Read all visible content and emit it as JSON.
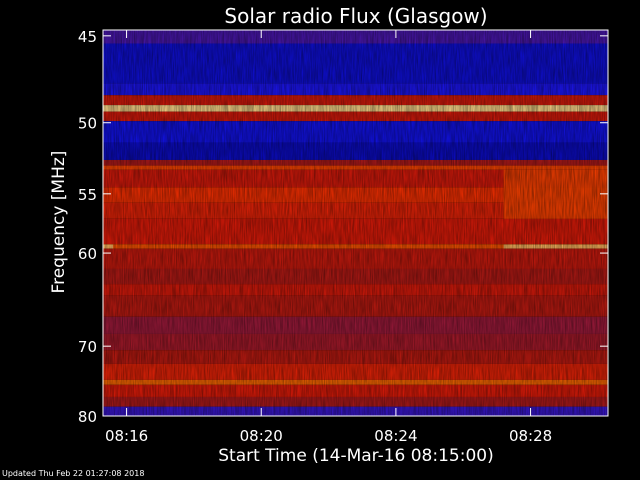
{
  "chart_data": {
    "type": "heatmap",
    "title": "Solar radio Flux (Glasgow)",
    "xlabel": "Start Time (14-Mar-16 08:15:00)",
    "ylabel": "Frequency [MHz]",
    "x_tick_labels": [
      "08:16",
      "08:20",
      "08:24",
      "08:28"
    ],
    "x_tick_minutes": [
      1,
      5,
      9,
      13
    ],
    "x_range_minutes": [
      0.3,
      15.3
    ],
    "y_tick_values": [
      45,
      50,
      55,
      60,
      70,
      80
    ],
    "y_scale": "reciprocal",
    "y_range": [
      44.7,
      80
    ],
    "colormap": [
      "#000080",
      "#1515ff",
      "#9c1a3f",
      "#b81a12",
      "#e01a0a",
      "#ff3300",
      "#ff7a00",
      "#ffe8a0"
    ],
    "bands": [
      {
        "from": 44.7,
        "to": 45.4,
        "level": 0.2
      },
      {
        "from": 45.4,
        "to": 47.6,
        "level": 0.1
      },
      {
        "from": 47.6,
        "to": 48.3,
        "level": 0.15
      },
      {
        "from": 48.3,
        "to": 48.9,
        "level": 0.55
      },
      {
        "from": 48.9,
        "to": 49.3,
        "level": 0.98
      },
      {
        "from": 49.3,
        "to": 49.9,
        "level": 0.55
      },
      {
        "from": 49.9,
        "to": 51.3,
        "level": 0.12
      },
      {
        "from": 51.3,
        "to": 52.5,
        "level": 0.08
      },
      {
        "from": 52.5,
        "to": 52.9,
        "level": 0.4
      },
      {
        "from": 52.9,
        "to": 53.2,
        "level": 0.75
      },
      {
        "from": 53.2,
        "to": 54.5,
        "level": 0.55
      },
      {
        "from": 54.5,
        "to": 55.7,
        "level": 0.7
      },
      {
        "from": 55.7,
        "to": 57.0,
        "level": 0.62
      },
      {
        "from": 57.0,
        "to": 59.2,
        "level": 0.58
      },
      {
        "from": 59.2,
        "to": 59.6,
        "level": 0.78
      },
      {
        "from": 59.6,
        "to": 61.5,
        "level": 0.5
      },
      {
        "from": 61.5,
        "to": 63.0,
        "level": 0.42
      },
      {
        "from": 63.0,
        "to": 64.2,
        "level": 0.55
      },
      {
        "from": 64.2,
        "to": 66.5,
        "level": 0.45
      },
      {
        "from": 66.5,
        "to": 68.5,
        "level": 0.3
      },
      {
        "from": 68.5,
        "to": 70.5,
        "level": 0.35
      },
      {
        "from": 70.5,
        "to": 72.3,
        "level": 0.45
      },
      {
        "from": 72.3,
        "to": 74.5,
        "level": 0.62
      },
      {
        "from": 74.5,
        "to": 75.2,
        "level": 0.82
      },
      {
        "from": 75.2,
        "to": 77.0,
        "level": 0.58
      },
      {
        "from": 77.0,
        "to": 78.5,
        "level": 0.4
      },
      {
        "from": 78.5,
        "to": 80.0,
        "level": 0.18
      }
    ],
    "features": [
      {
        "kind": "burst-step",
        "from": 53.2,
        "to": 57.0,
        "x_start_minutes": 12.2,
        "level": 0.75
      },
      {
        "kind": "line",
        "freq": 59.4,
        "x_start_minutes": 12.2,
        "level": 0.95
      },
      {
        "kind": "line",
        "freq": 59.4,
        "x_start_minutes": 0.3,
        "x_end_minutes": 0.6,
        "level": 0.95
      }
    ]
  },
  "footer": {
    "updated": "Updated Thu Feb 22 01:27:08 2018"
  }
}
